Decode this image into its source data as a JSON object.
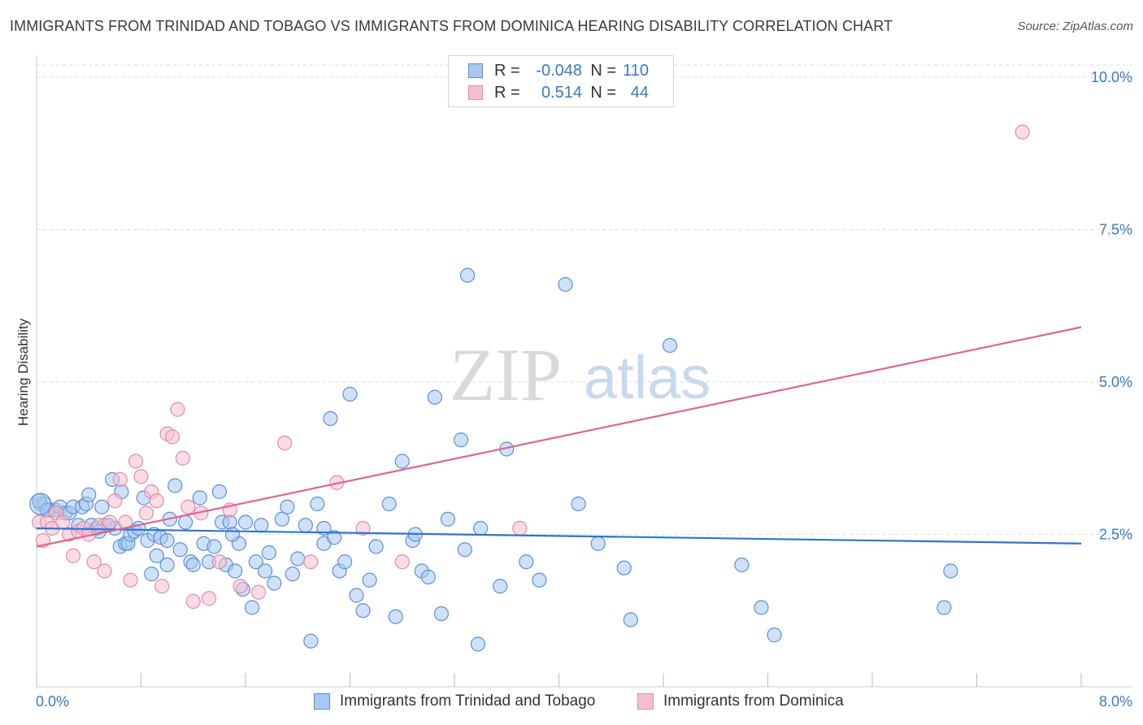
{
  "title": "IMMIGRANTS FROM TRINIDAD AND TOBAGO VS IMMIGRANTS FROM DOMINICA HEARING DISABILITY CORRELATION CHART",
  "source": "Source: ZipAtlas.com",
  "watermark": {
    "zip": "ZIP",
    "atlas": "atlas"
  },
  "colors": {
    "series1_fill": "#a8c8f0",
    "series1_stroke": "#5a8fd6",
    "series1_line": "#2f74d0",
    "series2_fill": "#f6bfd0",
    "series2_stroke": "#e58aa8",
    "series2_line": "#e0668f",
    "value_text": "#3a78c9"
  },
  "legend_top": [
    {
      "r_label": "R =",
      "r_value": "-0.048",
      "n_label": "N =",
      "n_value": "110"
    },
    {
      "r_label": "R =",
      "r_value": "0.514",
      "n_label": "N =",
      "n_value": "44"
    }
  ],
  "legend_bottom": [
    "Immigrants from Trinidad and Tobago",
    "Immigrants from Dominica"
  ],
  "chart_data": {
    "type": "scatter",
    "title": "IMMIGRANTS FROM TRINIDAD AND TOBAGO VS IMMIGRANTS FROM DOMINICA HEARING DISABILITY CORRELATION CHART",
    "xlabel": "",
    "ylabel": "Hearing Disability",
    "xlim": [
      0,
      8
    ],
    "ylim": [
      0,
      10.2
    ],
    "x_tick_labels": [
      "0.0%",
      "8.0%"
    ],
    "y_ticks": [
      2.5,
      5.0,
      7.5,
      10.0
    ],
    "y_tick_labels": [
      "2.5%",
      "5.0%",
      "7.5%",
      "10.0%"
    ],
    "grid": "horizontal dashed",
    "legend_position": "top-center and bottom",
    "series": [
      {
        "name": "Immigrants from Trinidad and Tobago",
        "r": -0.048,
        "n": 110,
        "trend": {
          "x": [
            0,
            8
          ],
          "y": [
            2.6,
            2.35
          ]
        },
        "points": [
          [
            0.03,
            3.0
          ],
          [
            0.06,
            3.0
          ],
          [
            0.1,
            2.9
          ],
          [
            0.14,
            2.9
          ],
          [
            0.18,
            2.95
          ],
          [
            0.22,
            2.85
          ],
          [
            0.25,
            2.85
          ],
          [
            0.28,
            2.95
          ],
          [
            0.32,
            2.65
          ],
          [
            0.35,
            2.95
          ],
          [
            0.38,
            3.0
          ],
          [
            0.4,
            3.15
          ],
          [
            0.42,
            2.65
          ],
          [
            0.46,
            2.6
          ],
          [
            0.5,
            2.95
          ],
          [
            0.52,
            2.65
          ],
          [
            0.58,
            3.4
          ],
          [
            0.6,
            2.6
          ],
          [
            0.64,
            2.3
          ],
          [
            0.68,
            2.35
          ],
          [
            0.7,
            2.35
          ],
          [
            0.72,
            2.5
          ],
          [
            0.75,
            2.55
          ],
          [
            0.78,
            2.6
          ],
          [
            0.82,
            3.1
          ],
          [
            0.85,
            2.4
          ],
          [
            0.88,
            1.85
          ],
          [
            0.9,
            2.5
          ],
          [
            0.92,
            2.15
          ],
          [
            0.95,
            2.45
          ],
          [
            1.0,
            2.0
          ],
          [
            1.02,
            2.75
          ],
          [
            1.06,
            3.3
          ],
          [
            1.1,
            2.25
          ],
          [
            1.14,
            2.7
          ],
          [
            1.18,
            2.05
          ],
          [
            1.2,
            2.0
          ],
          [
            1.25,
            3.1
          ],
          [
            1.28,
            2.35
          ],
          [
            1.32,
            2.05
          ],
          [
            1.36,
            2.3
          ],
          [
            1.4,
            3.2
          ],
          [
            1.42,
            2.7
          ],
          [
            1.45,
            2.0
          ],
          [
            1.48,
            2.7
          ],
          [
            1.52,
            1.9
          ],
          [
            1.55,
            2.35
          ],
          [
            1.58,
            1.6
          ],
          [
            1.6,
            2.7
          ],
          [
            1.65,
            1.3
          ],
          [
            1.68,
            2.05
          ],
          [
            1.72,
            2.65
          ],
          [
            1.75,
            1.9
          ],
          [
            1.78,
            2.2
          ],
          [
            1.82,
            1.7
          ],
          [
            1.88,
            2.75
          ],
          [
            1.92,
            2.95
          ],
          [
            1.96,
            1.85
          ],
          [
            2.0,
            2.1
          ],
          [
            2.06,
            2.65
          ],
          [
            2.1,
            0.75
          ],
          [
            2.15,
            3.0
          ],
          [
            2.2,
            2.35
          ],
          [
            2.25,
            4.4
          ],
          [
            2.28,
            2.45
          ],
          [
            2.32,
            1.9
          ],
          [
            2.36,
            2.05
          ],
          [
            2.4,
            4.8
          ],
          [
            2.45,
            1.5
          ],
          [
            2.5,
            1.25
          ],
          [
            2.55,
            1.75
          ],
          [
            2.6,
            2.3
          ],
          [
            2.7,
            3.0
          ],
          [
            2.75,
            1.15
          ],
          [
            2.8,
            3.7
          ],
          [
            2.88,
            2.4
          ],
          [
            2.95,
            1.9
          ],
          [
            3.0,
            1.8
          ],
          [
            3.05,
            4.75
          ],
          [
            3.1,
            1.2
          ],
          [
            3.15,
            2.75
          ],
          [
            3.25,
            4.05
          ],
          [
            3.28,
            2.25
          ],
          [
            3.38,
            0.7
          ],
          [
            3.55,
            1.65
          ],
          [
            3.6,
            3.9
          ],
          [
            3.75,
            2.05
          ],
          [
            3.85,
            1.75
          ],
          [
            4.05,
            6.6
          ],
          [
            4.15,
            3.0
          ],
          [
            4.5,
            1.95
          ],
          [
            4.55,
            1.1
          ],
          [
            4.85,
            5.6
          ],
          [
            5.4,
            2.0
          ],
          [
            5.55,
            1.3
          ],
          [
            5.65,
            0.85
          ],
          [
            6.95,
            1.3
          ],
          [
            7.0,
            1.9
          ],
          [
            0.02,
            3.05
          ],
          [
            0.08,
            2.9
          ],
          [
            0.48,
            2.55
          ],
          [
            0.65,
            3.2
          ],
          [
            2.9,
            2.5
          ],
          [
            3.4,
            2.6
          ],
          [
            1.0,
            2.4
          ],
          [
            1.5,
            2.5
          ],
          [
            2.2,
            2.6
          ],
          [
            3.3,
            6.75
          ],
          [
            4.3,
            2.35
          ],
          [
            0.55,
            2.65
          ]
        ]
      },
      {
        "name": "Immigrants from Dominica",
        "r": 0.514,
        "n": 44,
        "trend": {
          "x": [
            0,
            8
          ],
          "y": [
            2.3,
            5.9
          ]
        },
        "points": [
          [
            0.02,
            2.7
          ],
          [
            0.05,
            2.4
          ],
          [
            0.08,
            2.7
          ],
          [
            0.12,
            2.6
          ],
          [
            0.15,
            2.85
          ],
          [
            0.2,
            2.7
          ],
          [
            0.25,
            2.5
          ],
          [
            0.28,
            2.15
          ],
          [
            0.32,
            2.55
          ],
          [
            0.36,
            2.6
          ],
          [
            0.4,
            2.5
          ],
          [
            0.44,
            2.05
          ],
          [
            0.48,
            2.65
          ],
          [
            0.52,
            1.9
          ],
          [
            0.56,
            2.7
          ],
          [
            0.6,
            3.05
          ],
          [
            0.64,
            3.4
          ],
          [
            0.68,
            2.7
          ],
          [
            0.72,
            1.75
          ],
          [
            0.76,
            3.7
          ],
          [
            0.8,
            3.45
          ],
          [
            0.84,
            2.85
          ],
          [
            0.88,
            3.2
          ],
          [
            0.92,
            3.05
          ],
          [
            0.96,
            1.65
          ],
          [
            1.0,
            4.15
          ],
          [
            1.04,
            4.1
          ],
          [
            1.08,
            4.55
          ],
          [
            1.12,
            3.75
          ],
          [
            1.16,
            2.95
          ],
          [
            1.2,
            1.4
          ],
          [
            1.26,
            2.85
          ],
          [
            1.32,
            1.45
          ],
          [
            1.4,
            2.05
          ],
          [
            1.48,
            2.9
          ],
          [
            1.56,
            1.65
          ],
          [
            1.7,
            1.55
          ],
          [
            1.9,
            4.0
          ],
          [
            2.1,
            2.05
          ],
          [
            2.3,
            3.35
          ],
          [
            2.5,
            2.6
          ],
          [
            2.8,
            2.05
          ],
          [
            3.7,
            2.6
          ],
          [
            7.55,
            9.1
          ]
        ]
      }
    ]
  }
}
